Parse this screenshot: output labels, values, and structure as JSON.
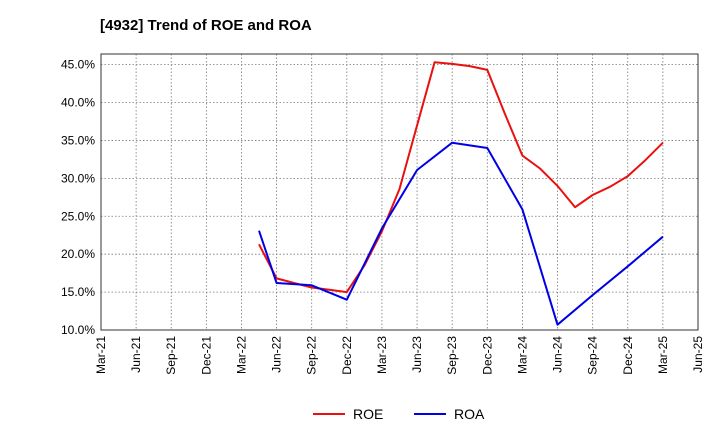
{
  "chart_data": {
    "type": "line",
    "title": "[4932]  Trend of ROE and ROA",
    "xlabel": "",
    "ylabel": "",
    "ylim": [
      10,
      46.4
    ],
    "y_ticks": [
      10,
      15,
      20,
      25,
      30,
      35,
      40,
      45
    ],
    "y_tick_labels": [
      "10.0%",
      "15.0%",
      "20.0%",
      "25.0%",
      "30.0%",
      "35.0%",
      "40.0%",
      "45.0%"
    ],
    "x_tick_labels": [
      "Mar-21",
      "Jun-21",
      "Sep-21",
      "Dec-21",
      "Mar-22",
      "Jun-22",
      "Sep-22",
      "Dec-22",
      "Mar-23",
      "Jun-23",
      "Sep-23",
      "Dec-23",
      "Mar-24",
      "Jun-24",
      "Sep-24",
      "Dec-24",
      "Mar-25",
      "Jun-25"
    ],
    "grid": true,
    "legend_position": "bottom",
    "series": [
      {
        "name": "ROE",
        "color": "#e8110f",
        "x": [
          4.5,
          5,
          5.5,
          6,
          6.5,
          7,
          7.5,
          8,
          8.5,
          9,
          9.5,
          10,
          10.5,
          11,
          11.5,
          12,
          12.5,
          13,
          13.5,
          14,
          14.5,
          15,
          15.5,
          16
        ],
        "values": [
          21.3,
          16.8,
          16.2,
          15.6,
          15.3,
          15.0,
          18.5,
          23.0,
          28.6,
          37.0,
          45.3,
          45.1,
          44.8,
          44.3,
          38.5,
          33.0,
          31.3,
          29.0,
          26.2,
          27.8,
          28.9,
          30.3,
          32.4,
          34.7
        ]
      },
      {
        "name": "ROA",
        "color": "#0000e6",
        "x": [
          4.5,
          5,
          6,
          7,
          8,
          9,
          10,
          11,
          12,
          13,
          14,
          15,
          16
        ],
        "values": [
          23.1,
          16.2,
          15.9,
          14.0,
          23.4,
          31.1,
          34.7,
          34.0,
          25.9,
          10.7,
          14.6,
          18.4,
          22.3
        ]
      }
    ]
  }
}
